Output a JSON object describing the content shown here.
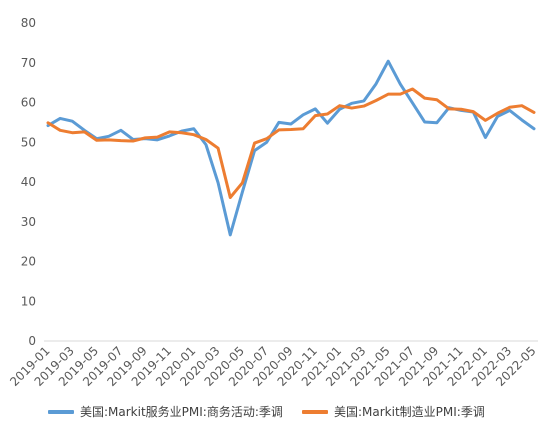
{
  "chart_data": {
    "type": "line",
    "title": "",
    "xlabel": "",
    "ylabel": "",
    "ylim": [
      0,
      80
    ],
    "yticks": [
      0,
      10,
      20,
      30,
      40,
      50,
      60,
      70,
      80
    ],
    "grid": false,
    "legend_position": "bottom",
    "x": [
      "2019-01",
      "2019-02",
      "2019-03",
      "2019-04",
      "2019-05",
      "2019-06",
      "2019-07",
      "2019-08",
      "2019-09",
      "2019-10",
      "2019-11",
      "2019-12",
      "2020-01",
      "2020-02",
      "2020-03",
      "2020-04",
      "2020-05",
      "2020-06",
      "2020-07",
      "2020-08",
      "2020-09",
      "2020-10",
      "2020-11",
      "2020-12",
      "2021-01",
      "2021-02",
      "2021-03",
      "2021-04",
      "2021-05",
      "2021-06",
      "2021-07",
      "2021-08",
      "2021-09",
      "2021-10",
      "2021-11",
      "2021-12",
      "2022-01",
      "2022-02",
      "2022-03",
      "2022-04",
      "2022-05"
    ],
    "xtick_labels": [
      "2019-01",
      "2019-03",
      "2019-05",
      "2019-07",
      "2019-09",
      "2019-11",
      "2020-01",
      "2020-03",
      "2020-05",
      "2020-07",
      "2020-09",
      "2020-11",
      "2021-01",
      "2021-03",
      "2021-05",
      "2021-07",
      "2021-09",
      "2021-11",
      "2022-01",
      "2022-03",
      "2022-05"
    ],
    "series": [
      {
        "name": "美国:Markit服务业PMI:商务活动:季调",
        "color": "#5B9BD5",
        "values": [
          54.2,
          56.0,
          55.3,
          53.0,
          50.9,
          51.5,
          53.0,
          50.7,
          50.9,
          50.6,
          51.6,
          52.8,
          53.4,
          49.4,
          39.8,
          26.7,
          37.5,
          47.9,
          50.0,
          55.0,
          54.6,
          56.9,
          58.4,
          54.8,
          58.3,
          59.8,
          60.4,
          64.7,
          70.4,
          64.6,
          59.9,
          55.1,
          54.9,
          58.7,
          58.0,
          57.6,
          51.2,
          56.5,
          58.0,
          55.6,
          53.4
        ]
      },
      {
        "name": "美国:Markit制造业PMI:季调",
        "color": "#ED7D31",
        "values": [
          54.9,
          53.0,
          52.4,
          52.6,
          50.5,
          50.6,
          50.4,
          50.3,
          51.1,
          51.3,
          52.6,
          52.4,
          51.9,
          50.7,
          48.5,
          36.1,
          39.8,
          49.8,
          50.9,
          53.1,
          53.2,
          53.4,
          56.7,
          57.1,
          59.2,
          58.6,
          59.1,
          60.5,
          62.1,
          62.1,
          63.4,
          61.1,
          60.7,
          58.4,
          58.3,
          57.7,
          55.5,
          57.3,
          58.8,
          59.2,
          57.5
        ]
      }
    ]
  }
}
